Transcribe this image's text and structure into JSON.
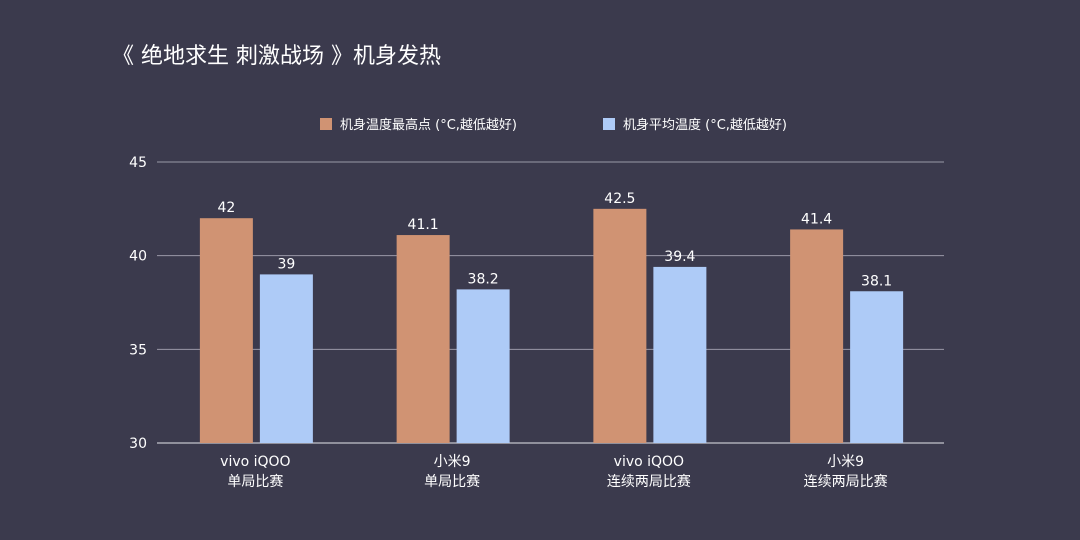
{
  "page": {
    "background": "#3b3a4d",
    "title": "《 绝地求生 刺激战场 》机身发热"
  },
  "chart_data": {
    "type": "bar",
    "title": "《 绝地求生 刺激战场 》机身发热",
    "categories": [
      [
        "vivo iQOO",
        "单局比赛"
      ],
      [
        "小米9",
        "单局比赛"
      ],
      [
        "vivo iQOO",
        "连续两局比赛"
      ],
      [
        "小米9",
        "连续两局比赛"
      ]
    ],
    "series": [
      {
        "name": "机身温度最高点 (°C,越低越好)",
        "color": "#d09373",
        "values": [
          42,
          41.1,
          42.5,
          41.4
        ]
      },
      {
        "name": "机身平均温度 (°C,越低越好)",
        "color": "#aecbf7",
        "values": [
          39,
          38.2,
          39.4,
          38.1
        ]
      }
    ],
    "value_labels": [
      [
        "42",
        "41.1",
        "42.5",
        "41.4"
      ],
      [
        "39",
        "38.2",
        "39.4",
        "38.1"
      ]
    ],
    "ylim": [
      30,
      45
    ],
    "yticks": [
      "30",
      "35",
      "40",
      "45"
    ],
    "grid": true,
    "legend_position": "top-center",
    "xlabel": "",
    "ylabel": ""
  }
}
